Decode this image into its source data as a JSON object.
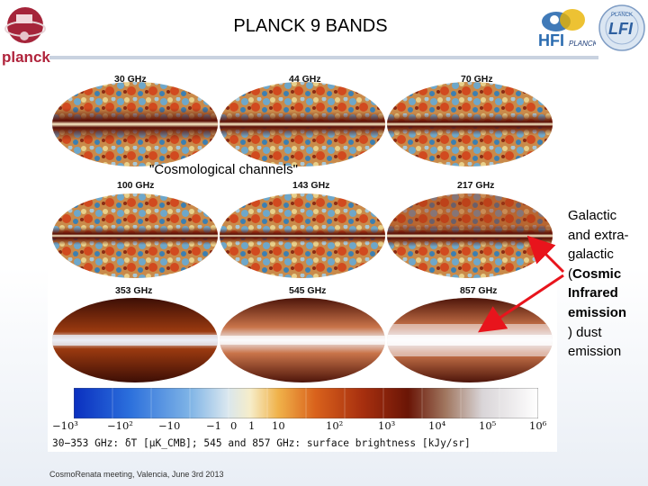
{
  "slide": {
    "title": "PLANCK 9 BANDS",
    "footer": "CosmoRenata meeting, Valencia, June 3rd 2013"
  },
  "logos": {
    "planck": {
      "text": "planck",
      "icon": "planck-satellite-logo"
    },
    "hfi": {
      "text": "HFI",
      "subtext": "PLANCK",
      "icon": "hfi-logo"
    },
    "lfi": {
      "text": "LFI",
      "subtext": "PLANCK",
      "icon": "lfi-logo"
    }
  },
  "figure": {
    "bands": [
      "30 GHz",
      "44 GHz",
      "70 GHz",
      "100 GHz",
      "143 GHz",
      "217 GHz",
      "353 GHz",
      "545 GHz",
      "857 GHz"
    ],
    "cosmological_label": "\"Cosmological channels\"",
    "colorbar_ticks": [
      "−10³",
      "−10²",
      "−10",
      "−1",
      "0",
      "1",
      "10",
      "10²",
      "10³",
      "10⁴",
      "10⁵",
      "10⁶"
    ],
    "caption": "30−353 GHz: δT [μK_CMB]; 545 and 857 GHz: surface brightness [kJy/sr]"
  },
  "annotation": {
    "line1": "Galactic",
    "line2": "and extra-",
    "line3": "galactic",
    "line4": "(Cosmic",
    "line5": "Infrared",
    "line6": "emission",
    "line7": ") dust",
    "line8": "emission",
    "arrow_color": "#e8141c"
  }
}
